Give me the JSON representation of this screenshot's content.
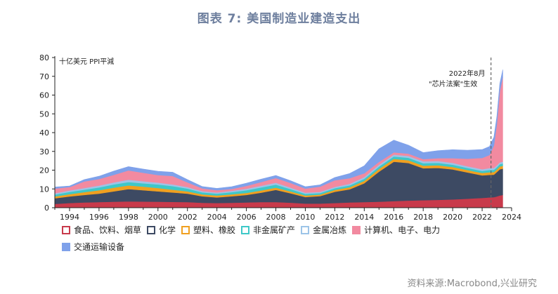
{
  "title": "图表 7:  美国制造业建造支出",
  "source": "资料来源:Macrobond,兴业研究",
  "chart_data": {
    "type": "area",
    "stacked": true,
    "ylabel": "十亿美元 PPI平減",
    "ylim": [
      0,
      80
    ],
    "yticks": [
      0,
      10,
      20,
      30,
      40,
      50,
      60,
      70,
      80
    ],
    "xlim": [
      1993.0,
      2024.0
    ],
    "xticks": [
      "1994",
      "1996",
      "1998",
      "2000",
      "2002",
      "2004",
      "2006",
      "2008",
      "2010",
      "2012",
      "2014",
      "2016",
      "2018",
      "2020",
      "2022",
      "2024"
    ],
    "annotation": {
      "line1": "2022年8月",
      "line2": "\"芯片法案\"生效",
      "x": 2022.6
    },
    "legend_position": "bottom",
    "x": [
      1993.0,
      1994.0,
      1995.0,
      1996.0,
      1997.0,
      1998.0,
      1999.0,
      2000.0,
      2001.0,
      2002.0,
      2003.0,
      2004.0,
      2005.0,
      2006.0,
      2007.0,
      2008.0,
      2009.0,
      2010.0,
      2011.0,
      2012.0,
      2013.0,
      2014.0,
      2015.0,
      2016.0,
      2017.0,
      2018.0,
      2019.0,
      2020.0,
      2021.0,
      2021.5,
      2022.0,
      2022.5,
      2022.8,
      2023.0,
      2023.2,
      2023.4
    ],
    "series": [
      {
        "name": "食品、饮料、烟草",
        "color": "#c83a4b",
        "values": [
          2.0,
          2.5,
          2.8,
          3.0,
          3.2,
          3.4,
          3.3,
          3.2,
          3.1,
          3.0,
          2.6,
          2.5,
          2.6,
          2.8,
          3.0,
          3.0,
          2.7,
          2.2,
          2.2,
          2.5,
          2.8,
          3.0,
          3.2,
          3.5,
          3.8,
          4.0,
          4.2,
          4.4,
          4.8,
          5.0,
          5.2,
          5.5,
          5.6,
          6.0,
          6.5,
          6.8
        ]
      },
      {
        "name": "化学",
        "color": "#3d4a63",
        "values": [
          3.0,
          3.5,
          4.0,
          4.5,
          5.5,
          6.5,
          6.0,
          5.5,
          5.0,
          4.5,
          3.5,
          3.0,
          3.5,
          4.0,
          5.0,
          6.5,
          5.0,
          3.5,
          4.0,
          6.0,
          7.0,
          10.0,
          16.0,
          21.0,
          20.0,
          17.0,
          17.0,
          16.0,
          14.0,
          13.0,
          12.0,
          12.0,
          12.0,
          13.0,
          14.0,
          14.0
        ]
      },
      {
        "name": "塑料、橡胶",
        "color": "#f0a020",
        "values": [
          1.0,
          1.2,
          1.5,
          1.8,
          2.0,
          2.0,
          1.9,
          1.8,
          1.5,
          1.2,
          1.0,
          1.0,
          1.0,
          1.1,
          1.2,
          1.2,
          1.0,
          0.8,
          0.8,
          1.0,
          1.1,
          1.3,
          1.5,
          1.5,
          1.5,
          1.4,
          1.4,
          1.3,
          1.3,
          1.3,
          1.3,
          1.4,
          1.4,
          1.4,
          1.5,
          1.5
        ]
      },
      {
        "name": "非金属矿产",
        "color": "#3ec8c8",
        "values": [
          1.0,
          1.2,
          1.3,
          1.5,
          1.7,
          1.8,
          1.8,
          1.9,
          1.9,
          1.5,
          1.1,
          1.0,
          1.2,
          1.4,
          1.6,
          1.6,
          1.2,
          0.9,
          0.8,
          0.9,
          1.0,
          1.1,
          1.2,
          1.3,
          1.3,
          1.3,
          1.3,
          1.2,
          1.1,
          1.1,
          1.1,
          1.2,
          1.2,
          1.2,
          1.2,
          1.2
        ]
      },
      {
        "name": "金属冶炼",
        "color": "#9cc4e8",
        "values": [
          0.7,
          0.8,
          0.9,
          1.0,
          1.1,
          1.2,
          1.1,
          1.0,
          0.9,
          0.8,
          0.6,
          0.6,
          0.7,
          0.8,
          0.9,
          1.0,
          0.8,
          0.6,
          0.6,
          0.7,
          0.8,
          0.9,
          1.0,
          1.0,
          1.0,
          1.0,
          1.0,
          1.0,
          0.9,
          0.9,
          0.9,
          1.0,
          1.0,
          1.0,
          1.0,
          1.0
        ]
      },
      {
        "name": "计算机、电子、电力",
        "color": "#f28aa0",
        "values": [
          2.5,
          1.8,
          3.5,
          3.5,
          4.0,
          5.0,
          4.5,
          4.0,
          4.5,
          2.5,
          1.5,
          1.2,
          1.0,
          1.5,
          2.0,
          2.5,
          2.5,
          2.2,
          2.8,
          3.5,
          3.0,
          2.0,
          1.5,
          1.2,
          1.2,
          1.2,
          1.5,
          2.5,
          4.0,
          5.0,
          6.0,
          7.0,
          12.0,
          22.0,
          38.0,
          45.0
        ]
      },
      {
        "name": "交通运输设备",
        "color": "#7fa1ea",
        "values": [
          0.8,
          0.6,
          1.0,
          1.5,
          2.0,
          2.0,
          2.0,
          2.0,
          2.0,
          1.5,
          1.0,
          1.0,
          1.2,
          1.5,
          1.5,
          1.4,
          1.2,
          1.0,
          1.0,
          1.5,
          2.5,
          4.0,
          7.0,
          6.5,
          4.5,
          3.5,
          4.0,
          4.5,
          4.5,
          4.5,
          4.5,
          4.5,
          4.5,
          4.0,
          4.0,
          4.0
        ]
      }
    ]
  }
}
